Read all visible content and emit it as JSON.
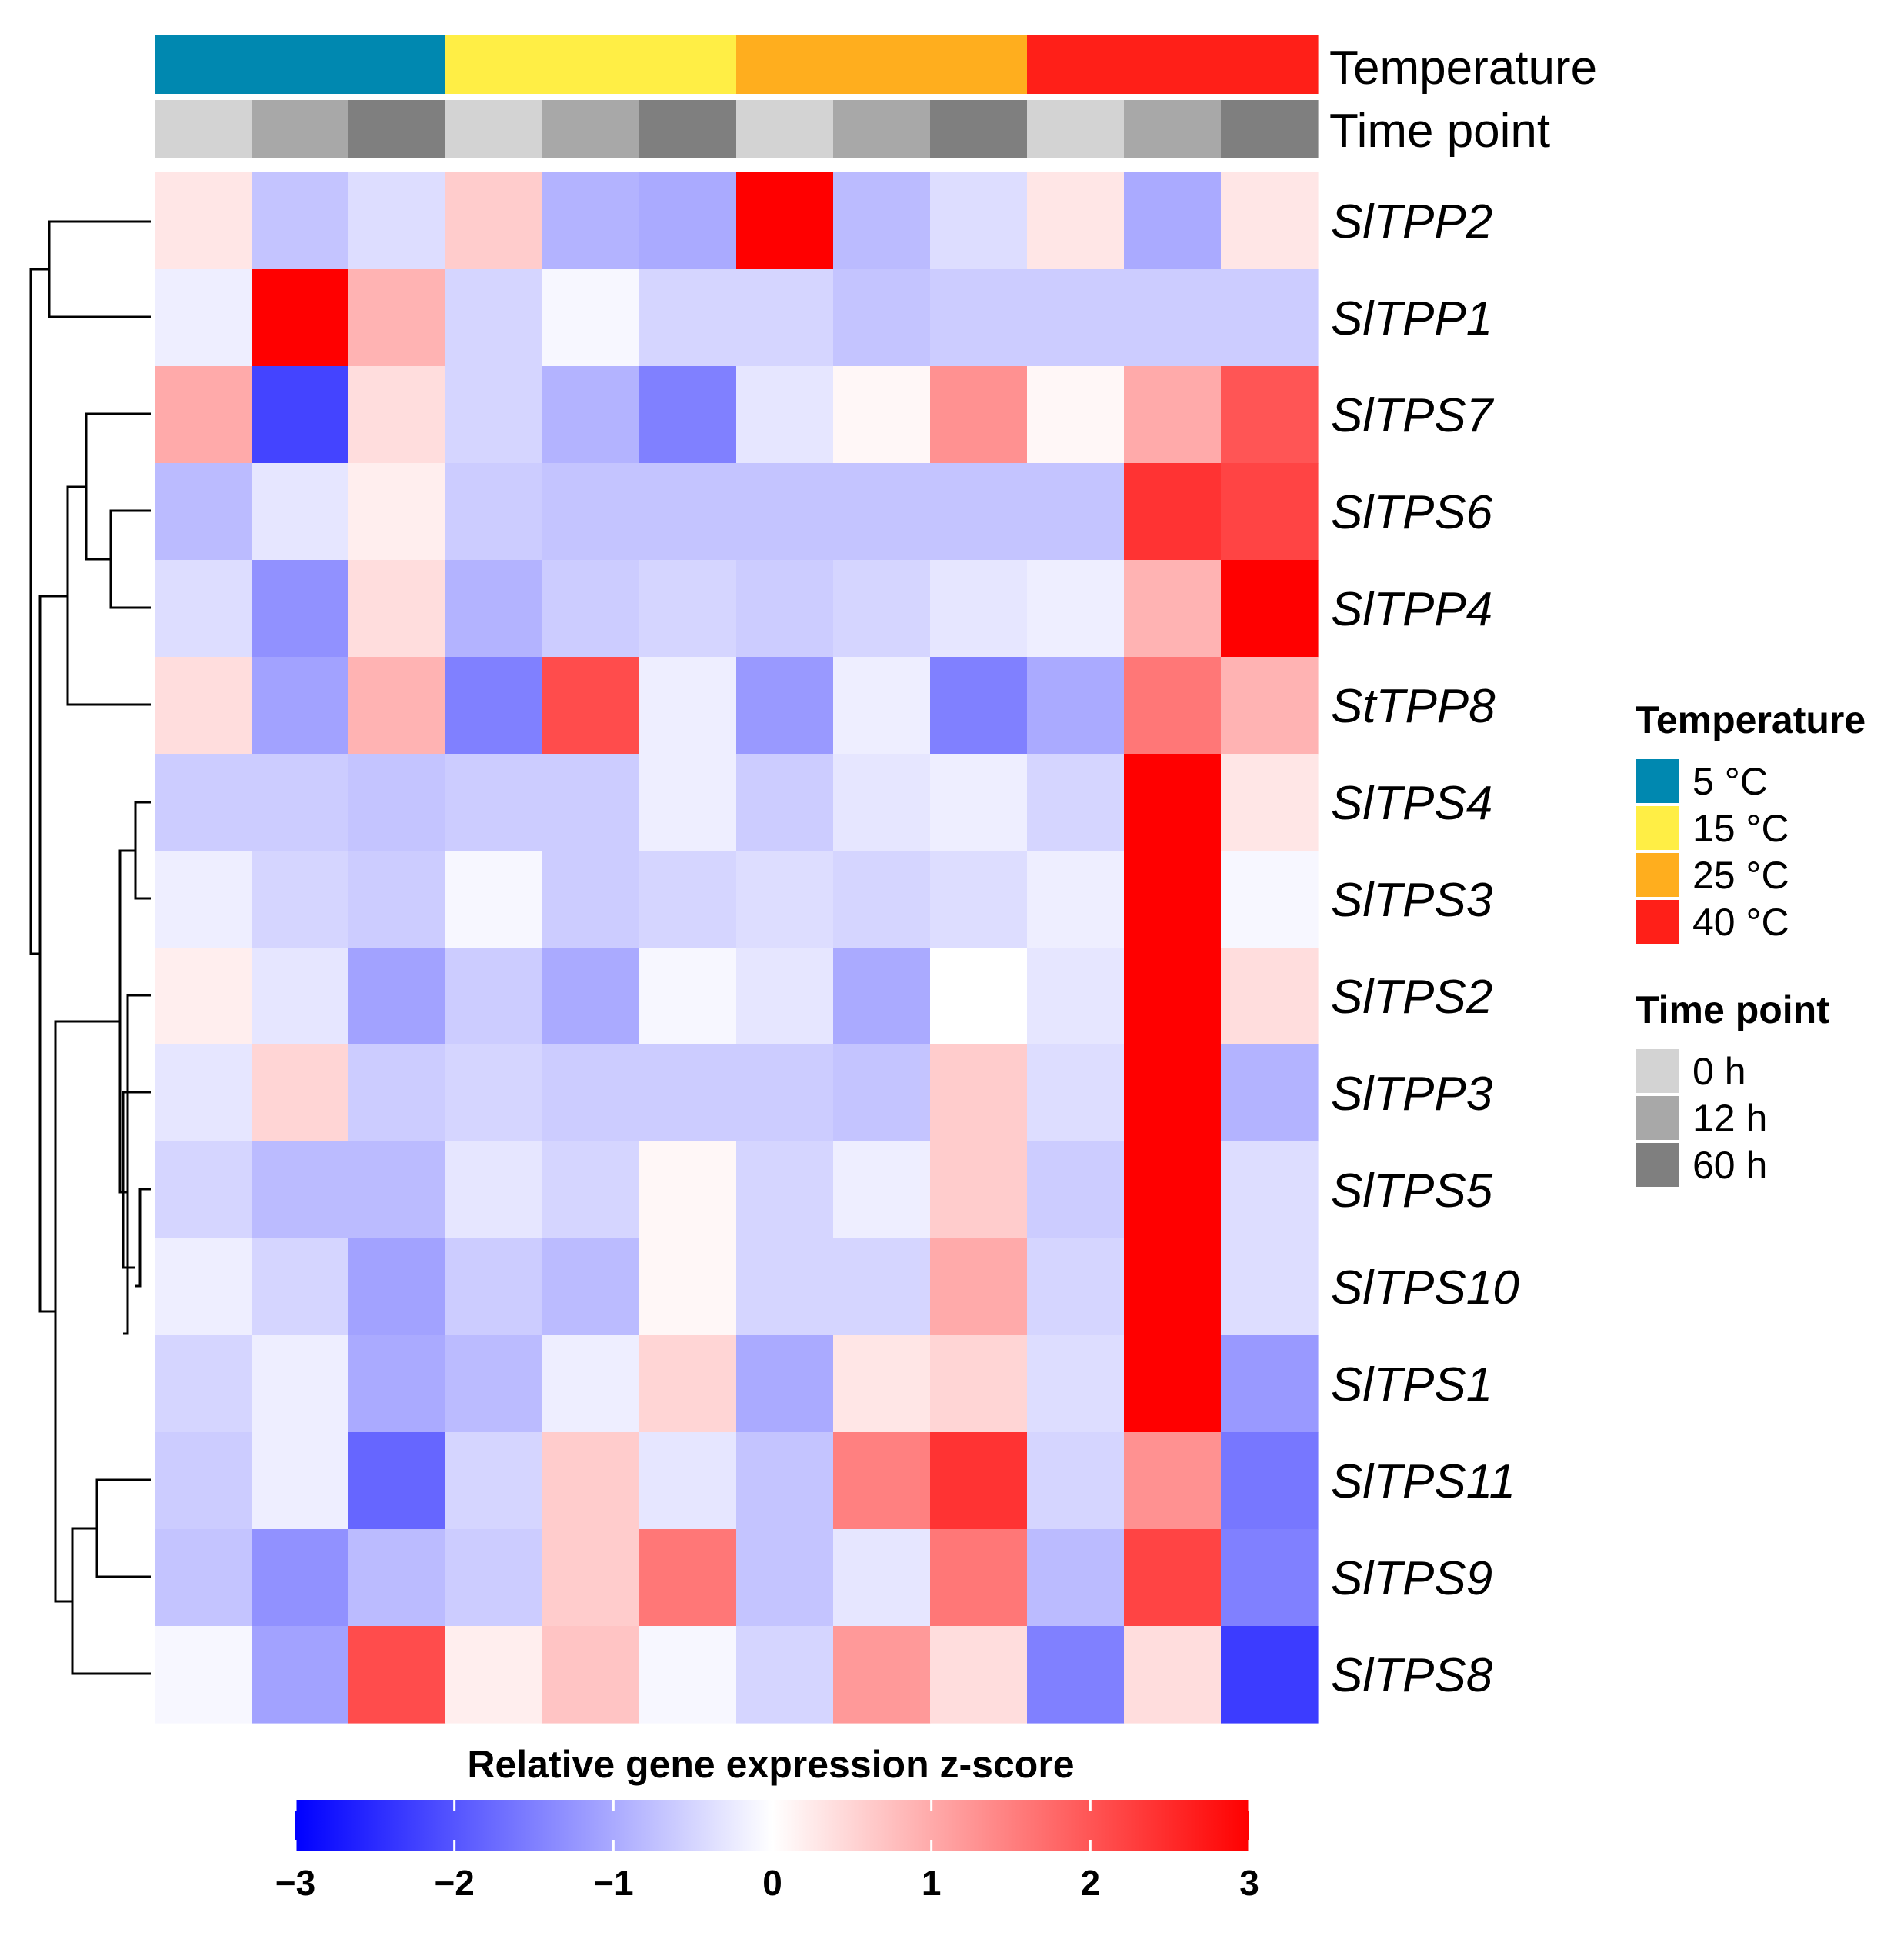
{
  "chart_data": {
    "type": "heatmap",
    "colorbar_title": "Relative gene expression z-score",
    "colorbar_range": [
      -3,
      3
    ],
    "colorbar_ticks": [
      "−3",
      "−2",
      "−1",
      "0",
      "1",
      "2",
      "3"
    ],
    "colorbar_tick_values": [
      -3,
      -2,
      -1,
      0,
      1,
      2,
      3
    ],
    "colors": {
      "low": "#0000ff",
      "mid": "#ffffff",
      "high": "#ff0000"
    },
    "annotation_labels": {
      "temperature": "Temperature",
      "time_point": "Time point"
    },
    "column_temperature_groups": [
      0,
      0,
      0,
      1,
      1,
      1,
      2,
      2,
      2,
      3,
      3,
      3
    ],
    "column_time_groups": [
      0,
      1,
      2,
      0,
      1,
      2,
      0,
      1,
      2,
      0,
      1,
      2
    ],
    "legend_temperature": {
      "title": "Temperature",
      "items": [
        {
          "label": "5 °C",
          "color": "#0088b0"
        },
        {
          "label": "15 °C",
          "color": "#ffee45"
        },
        {
          "label": "25 °C",
          "color": "#ffae1e"
        },
        {
          "label": "40 °C",
          "color": "#ff1f18"
        }
      ]
    },
    "legend_time": {
      "title": "Time point",
      "items": [
        {
          "label": "0 h",
          "color": "#d3d3d3"
        },
        {
          "label": "12 h",
          "color": "#a8a8a8"
        },
        {
          "label": "60 h",
          "color": "#7f7f7f"
        }
      ]
    },
    "rows": [
      "SlTPP2",
      "SlTPP1",
      "SlTPS7",
      "SlTPS6",
      "SlTPP4",
      "StTPP8",
      "SlTPS4",
      "SlTPS3",
      "SlTPS2",
      "SlTPP3",
      "SlTPS5",
      "SlTPS10",
      "SlTPS1",
      "SlTPS11",
      "SlTPS9",
      "SlTPS8"
    ],
    "values": [
      [
        0.3,
        -0.7,
        -0.4,
        0.6,
        -0.9,
        -1.0,
        3.0,
        -0.8,
        -0.4,
        0.3,
        -1.0,
        0.3
      ],
      [
        -0.2,
        3.0,
        0.9,
        -0.5,
        -0.1,
        -0.5,
        -0.5,
        -0.7,
        -0.6,
        -0.6,
        -0.6,
        -0.6
      ],
      [
        1.0,
        -2.2,
        0.4,
        -0.5,
        -0.9,
        -1.5,
        -0.3,
        0.1,
        1.3,
        0.1,
        1.0,
        2.0
      ],
      [
        -0.8,
        -0.3,
        0.2,
        -0.6,
        -0.7,
        -0.7,
        -0.7,
        -0.7,
        -0.7,
        -0.7,
        2.4,
        2.2
      ],
      [
        -0.4,
        -1.3,
        0.4,
        -0.9,
        -0.6,
        -0.5,
        -0.6,
        -0.5,
        -0.3,
        -0.2,
        0.9,
        3.0
      ],
      [
        0.4,
        -1.1,
        0.9,
        -1.5,
        2.1,
        -0.2,
        -1.2,
        -0.2,
        -1.5,
        -1.0,
        1.6,
        0.9
      ],
      [
        -0.6,
        -0.6,
        -0.7,
        -0.6,
        -0.6,
        -0.2,
        -0.6,
        -0.3,
        -0.2,
        -0.5,
        3.0,
        0.3
      ],
      [
        -0.2,
        -0.5,
        -0.6,
        -0.1,
        -0.6,
        -0.5,
        -0.4,
        -0.5,
        -0.4,
        -0.2,
        3.0,
        -0.1
      ],
      [
        0.2,
        -0.3,
        -1.1,
        -0.6,
        -1.0,
        -0.1,
        -0.3,
        -1.0,
        0.0,
        -0.3,
        3.0,
        0.4
      ],
      [
        -0.3,
        0.5,
        -0.6,
        -0.5,
        -0.6,
        -0.6,
        -0.6,
        -0.7,
        0.6,
        -0.4,
        3.0,
        -0.9
      ],
      [
        -0.5,
        -0.8,
        -0.8,
        -0.3,
        -0.5,
        0.1,
        -0.5,
        -0.2,
        0.6,
        -0.6,
        3.0,
        -0.4
      ],
      [
        -0.2,
        -0.5,
        -1.1,
        -0.6,
        -0.8,
        0.1,
        -0.5,
        -0.5,
        1.0,
        -0.5,
        3.0,
        -0.4
      ],
      [
        -0.5,
        -0.2,
        -1.0,
        -0.8,
        -0.2,
        0.5,
        -1.0,
        0.3,
        0.5,
        -0.4,
        3.0,
        -1.2
      ],
      [
        -0.6,
        -0.2,
        -1.8,
        -0.5,
        0.6,
        -0.3,
        -0.7,
        1.5,
        2.4,
        -0.5,
        1.3,
        -1.6
      ],
      [
        -0.7,
        -1.3,
        -0.8,
        -0.6,
        0.6,
        1.6,
        -0.7,
        -0.3,
        1.6,
        -0.8,
        2.2,
        -1.5
      ],
      [
        -0.1,
        -1.1,
        2.1,
        0.2,
        0.7,
        -0.1,
        -0.5,
        1.2,
        0.4,
        -1.5,
        0.4,
        -2.3
      ]
    ]
  }
}
